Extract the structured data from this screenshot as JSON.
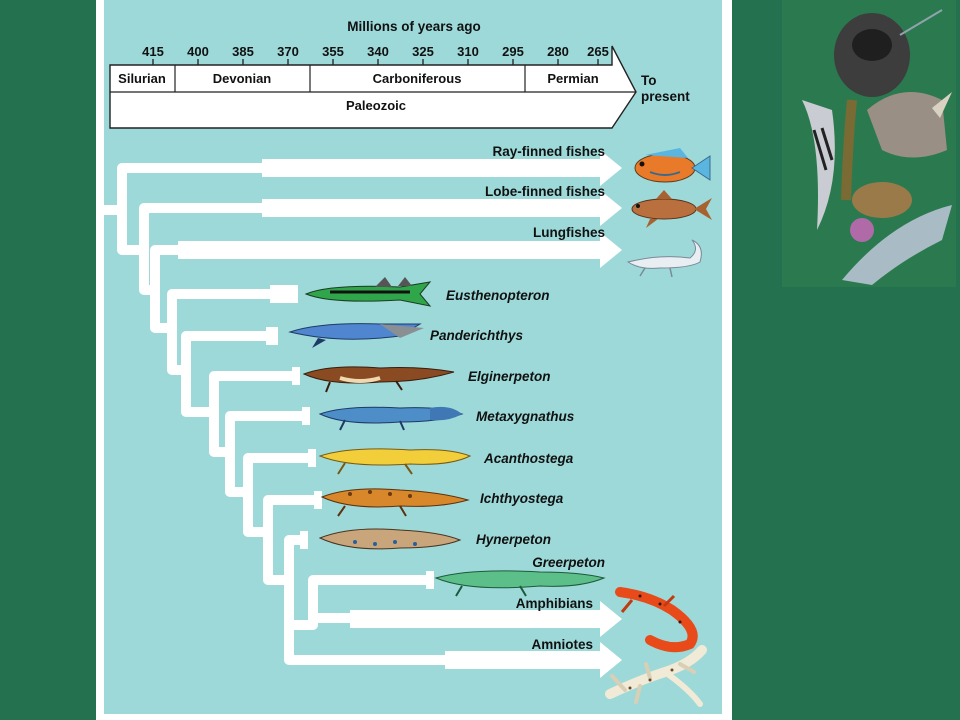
{
  "timeline": {
    "title": "Millions of years ago",
    "ticks": [
      "415",
      "400",
      "385",
      "370",
      "355",
      "340",
      "325",
      "310",
      "295",
      "280",
      "265"
    ],
    "periods": [
      "Silurian",
      "Devonian",
      "Carboniferous",
      "Permian"
    ],
    "era": "Paleozoic",
    "present_label_1": "To",
    "present_label_2": "present"
  },
  "taxa": [
    "Ray-finned fishes",
    "Lobe-finned fishes",
    "Lungfishes",
    "Eusthenopteron",
    "Panderichthys",
    "Elginerpeton",
    "Metaxygnathus",
    "Acanthostega",
    "Ichthyostega",
    "Hynerpeton",
    "Greerpeton",
    "Amphibians",
    "Amniotes"
  ],
  "icons": [
    "ray-finned-fish-icon",
    "lobe-finned-fish-icon",
    "lungfish-icon",
    "eusthenopteron-icon",
    "panderichthys-icon",
    "elginerpeton-icon",
    "metaxygnathus-icon",
    "acanthostega-icon",
    "ichthyostega-icon",
    "hynerpeton-icon",
    "greerpeton-icon",
    "salamander-icon",
    "gecko-icon",
    "animal-collage-icon"
  ],
  "colors": {
    "background": "#23714f",
    "diagram_fill": "#9dd9d9",
    "branch": "#ffffff"
  }
}
